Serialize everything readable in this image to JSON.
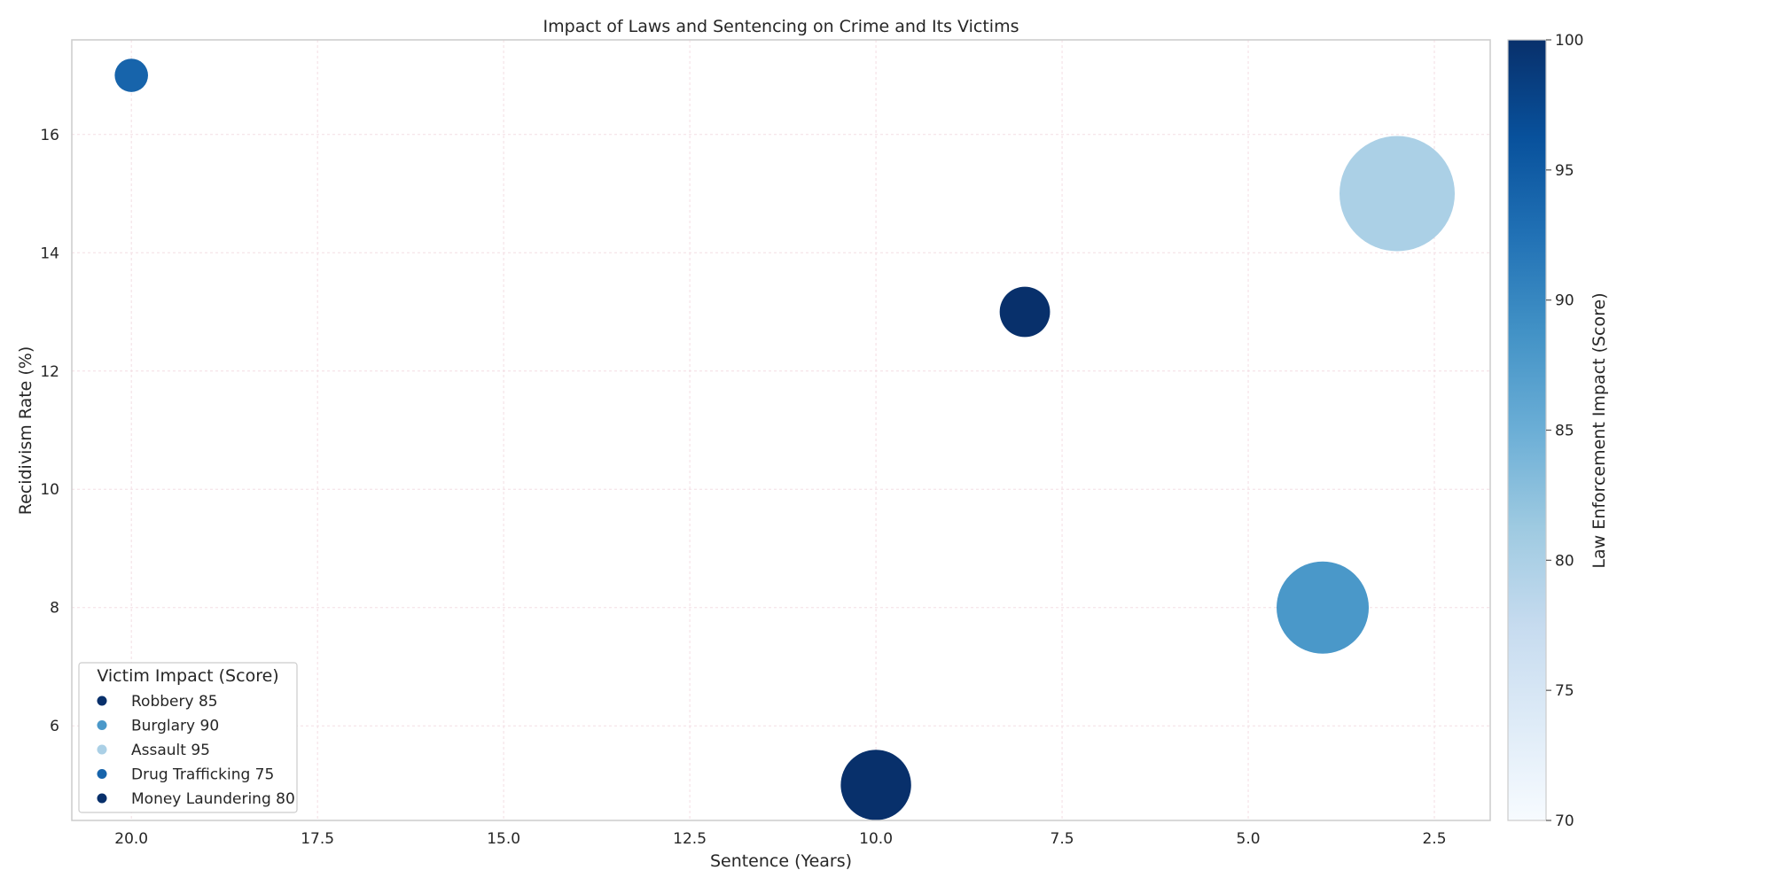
{
  "chart_data": {
    "type": "scatter",
    "title": "Impact of Laws and Sentencing on Crime and Its Victims",
    "xlabel": "Sentence (Years)",
    "ylabel": "Recidivism Rate (%)",
    "xlim": [
      20.8,
      1.75
    ],
    "x_inverted": true,
    "ylim": [
      4.4,
      17.6
    ],
    "xticks": [
      "20.0",
      "17.5",
      "15.0",
      "12.5",
      "10.0",
      "7.5",
      "5.0",
      "2.5"
    ],
    "xtick_values": [
      20,
      17.5,
      15,
      12.5,
      10,
      7.5,
      5,
      2.5
    ],
    "yticks": [
      "6",
      "8",
      "10",
      "12",
      "14",
      "16"
    ],
    "ytick_values": [
      6,
      8,
      10,
      12,
      14,
      16
    ],
    "grid": true,
    "legend": {
      "title": "Victim Impact (Score)",
      "position": "lower-left",
      "entries": [
        "Robbery 85",
        "Burglary 90",
        "Assault 95",
        "Drug Trafficking 75",
        "Money Laundering 80"
      ]
    },
    "colorbar": {
      "label": "Law Enforcement Impact (Score)",
      "range": [
        70,
        100
      ],
      "ticks": [
        "70",
        "75",
        "80",
        "85",
        "90",
        "95",
        "100"
      ],
      "tick_values": [
        70,
        75,
        80,
        85,
        90,
        95,
        100
      ],
      "colormap": "Blues"
    },
    "series": [
      {
        "name": "Robbery 85",
        "x": 10,
        "y": 5,
        "color_value": 100
      },
      {
        "name": "Burglary 90",
        "x": 4,
        "y": 8,
        "color_value": 88
      },
      {
        "name": "Assault 95",
        "x": 3,
        "y": 15,
        "color_value": 80
      },
      {
        "name": "Drug Trafficking 75",
        "x": 20,
        "y": 17,
        "color_value": 94
      },
      {
        "name": "Money Laundering 80",
        "x": 8,
        "y": 13,
        "color_value": 100
      }
    ],
    "bubble_size_by": "victim_impact",
    "bubble_size_values": [
      85,
      90,
      95,
      75,
      80
    ]
  }
}
